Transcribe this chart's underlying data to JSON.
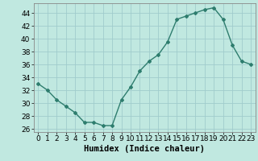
{
  "x": [
    0,
    1,
    2,
    3,
    4,
    5,
    6,
    7,
    8,
    9,
    10,
    11,
    12,
    13,
    14,
    15,
    16,
    17,
    18,
    19,
    20,
    21,
    22,
    23
  ],
  "y": [
    33,
    32,
    30.5,
    29.5,
    28.5,
    27,
    27,
    26.5,
    26.5,
    30.5,
    32.5,
    35,
    36.5,
    37.5,
    39.5,
    43,
    43.5,
    44,
    44.5,
    44.8,
    43,
    39,
    36.5,
    36
  ],
  "line_color": "#2e7d6e",
  "marker": "D",
  "marker_size": 2.0,
  "line_width": 1.0,
  "bg_color": "#c0e8e0",
  "grid_color": "#a0cccc",
  "xlabel": "Humidex (Indice chaleur)",
  "ylim": [
    25.5,
    45.5
  ],
  "xlim": [
    -0.5,
    23.5
  ],
  "yticks": [
    26,
    28,
    30,
    32,
    34,
    36,
    38,
    40,
    42,
    44
  ],
  "xticks": [
    0,
    1,
    2,
    3,
    4,
    5,
    6,
    7,
    8,
    9,
    10,
    11,
    12,
    13,
    14,
    15,
    16,
    17,
    18,
    19,
    20,
    21,
    22,
    23
  ],
  "xlabel_fontsize": 7.5,
  "tick_fontsize": 6.5
}
